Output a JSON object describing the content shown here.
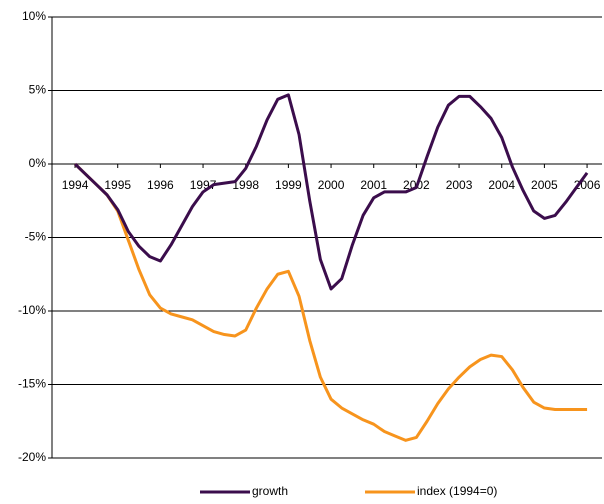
{
  "chart_data": {
    "type": "line",
    "x": [
      1994,
      1994.25,
      1994.5,
      1994.75,
      1995,
      1995.25,
      1995.5,
      1995.75,
      1996,
      1996.25,
      1996.5,
      1996.75,
      1997,
      1997.25,
      1997.5,
      1997.75,
      1998,
      1998.25,
      1998.5,
      1998.75,
      1999,
      1999.25,
      1999.5,
      1999.75,
      2000,
      2000.25,
      2000.5,
      2000.75,
      2001,
      2001.25,
      2001.5,
      2001.75,
      2002,
      2002.25,
      2002.5,
      2002.75,
      2003,
      2003.25,
      2003.5,
      2003.75,
      2004,
      2004.25,
      2004.5,
      2004.75,
      2005,
      2005.25,
      2005.5,
      2005.75,
      2006
    ],
    "series": [
      {
        "name": "growth",
        "color": "#3b0d4c",
        "values": [
          0,
          -0.7,
          -1.4,
          -2.1,
          -3.1,
          -4.6,
          -5.6,
          -6.3,
          -6.6,
          -5.5,
          -4.2,
          -2.9,
          -1.9,
          -1.4,
          -1.3,
          -1.2,
          -0.3,
          1.2,
          3.0,
          4.4,
          4.7,
          2.0,
          -2.5,
          -6.5,
          -8.5,
          -7.8,
          -5.5,
          -3.5,
          -2.3,
          -1.9,
          -1.9,
          -1.9,
          -1.6,
          0.5,
          2.5,
          4.0,
          4.6,
          4.6,
          3.9,
          3.1,
          1.8,
          -0.2,
          -1.8,
          -3.2,
          -3.7,
          -3.5,
          -2.6,
          -1.6,
          -0.6
        ]
      },
      {
        "name": "index (1994=0)",
        "color": "#f7941d",
        "values": [
          0,
          -0.7,
          -1.4,
          -2.1,
          -3.2,
          -5.2,
          -7.2,
          -8.9,
          -9.8,
          -10.2,
          -10.4,
          -10.6,
          -11.0,
          -11.4,
          -11.6,
          -11.7,
          -11.3,
          -9.8,
          -8.5,
          -7.5,
          -7.3,
          -9.0,
          -12.0,
          -14.5,
          -16.0,
          -16.6,
          -17.0,
          -17.4,
          -17.7,
          -18.2,
          -18.5,
          -18.8,
          -18.6,
          -17.5,
          -16.3,
          -15.3,
          -14.5,
          -13.8,
          -13.3,
          -13.0,
          -13.1,
          -14.0,
          -15.2,
          -16.2,
          -16.6,
          -16.7,
          -16.7,
          -16.7,
          -16.7
        ]
      }
    ],
    "xlim": [
      1993.46,
      2006.35
    ],
    "xticks": [
      1994,
      1995,
      1996,
      1997,
      1998,
      1999,
      2000,
      2001,
      2002,
      2003,
      2004,
      2005,
      2006
    ],
    "ylim": [
      -20,
      10
    ],
    "yticks": [
      {
        "value": -20,
        "label": "-20%"
      },
      {
        "value": -15,
        "label": "-15%"
      },
      {
        "value": -10,
        "label": "-10%"
      },
      {
        "value": -5,
        "label": "-5%"
      },
      {
        "value": 0,
        "label": "0%"
      },
      {
        "value": 5,
        "label": "5%"
      },
      {
        "value": 10,
        "label": "10%"
      }
    ],
    "grid": true,
    "legend": "bottom"
  }
}
